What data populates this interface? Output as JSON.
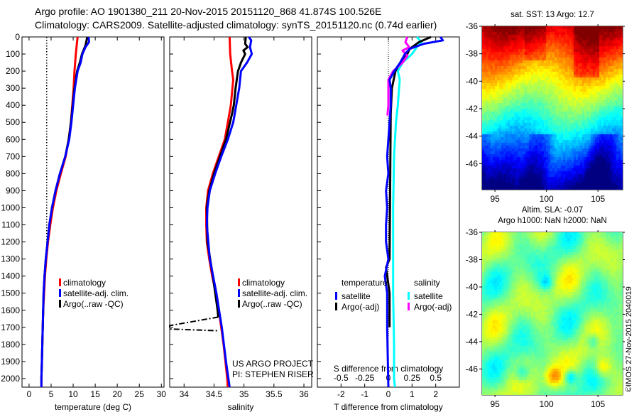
{
  "header": {
    "line1": "Argo profile: AO 1901380_211 20-Nov-2015 20151120_868 41.874S 100.526E",
    "line2": "Climatology: CARS2009. Satellite-adjusted climatology: synTS_20151120.nc (0.74d earlier)"
  },
  "depth_axis": {
    "ticks": [
      0,
      100,
      200,
      300,
      400,
      500,
      600,
      700,
      800,
      900,
      1000,
      1100,
      1200,
      1300,
      1400,
      1500,
      1600,
      1700,
      1800,
      1900,
      2000
    ],
    "ylim": [
      0,
      2050
    ]
  },
  "project": {
    "line1": "US ARGO PROJECT",
    "line2": "PI: STEPHEN RISER"
  },
  "credit": "©IMOS 27-Nov-2015 2040019",
  "chart_data": [
    {
      "id": "temperature",
      "type": "line",
      "xlabel": "temperature (deg C)",
      "xlim": [
        -1.6,
        30.6
      ],
      "ylim": [
        0,
        2050
      ],
      "xticks": [
        0,
        5,
        10,
        15,
        20,
        25,
        30
      ],
      "reference_line": {
        "x": 4,
        "depth": [
          0,
          1250
        ],
        "style": "dotted"
      },
      "legend": [
        {
          "label": "climatology",
          "color": "#ff0000"
        },
        {
          "label": "satellite-adj. clim.",
          "color": "#0000ff"
        },
        {
          "label": "Argo(..raw -QC)",
          "color": "#000000"
        }
      ],
      "series": [
        {
          "name": "climatology",
          "color": "#ff0000",
          "points": [
            [
              0,
              11
            ],
            [
              50,
              10.8
            ],
            [
              100,
              10.6
            ],
            [
              200,
              10.3
            ],
            [
              300,
              10.1
            ],
            [
              400,
              9.8
            ],
            [
              500,
              9.5
            ],
            [
              600,
              9
            ],
            [
              700,
              8.3
            ],
            [
              800,
              7.2
            ],
            [
              900,
              6.2
            ],
            [
              1000,
              5.4
            ],
            [
              1100,
              4.8
            ],
            [
              1200,
              4.3
            ],
            [
              1300,
              3.9
            ],
            [
              1400,
              3.6
            ],
            [
              1500,
              3.4
            ],
            [
              1600,
              3.2
            ],
            [
              1700,
              3.1
            ],
            [
              1800,
              3
            ],
            [
              1900,
              2.9
            ],
            [
              2000,
              2.8
            ],
            [
              2050,
              2.8
            ]
          ]
        },
        {
          "name": "Argo",
          "color": "#000000",
          "points": [
            [
              0,
              13.2
            ],
            [
              50,
              12.8
            ],
            [
              100,
              12
            ],
            [
              150,
              11.5
            ],
            [
              200,
              10.9
            ],
            [
              300,
              10.3
            ],
            [
              400,
              9.9
            ],
            [
              500,
              9.5
            ],
            [
              600,
              9
            ],
            [
              700,
              8.2
            ],
            [
              800,
              7
            ],
            [
              900,
              6
            ],
            [
              1000,
              5.2
            ],
            [
              1100,
              4.6
            ],
            [
              1200,
              4.2
            ],
            [
              1300,
              3.8
            ],
            [
              1400,
              3.5
            ],
            [
              1500,
              3.3
            ],
            [
              1700,
              3.1
            ],
            [
              1900,
              2.9
            ],
            [
              2000,
              2.8
            ]
          ]
        },
        {
          "name": "satellite-adj. clim.",
          "color": "#0000ff",
          "points": [
            [
              0,
              13.5
            ],
            [
              30,
              13.6
            ],
            [
              60,
              12.8
            ],
            [
              100,
              12.1
            ],
            [
              150,
              11.7
            ],
            [
              200,
              11
            ],
            [
              300,
              10.4
            ],
            [
              400,
              10
            ],
            [
              500,
              9.6
            ],
            [
              600,
              9.1
            ],
            [
              700,
              8.2
            ],
            [
              800,
              7
            ],
            [
              900,
              6
            ],
            [
              1000,
              5.2
            ],
            [
              1100,
              4.6
            ],
            [
              1200,
              4.2
            ],
            [
              1300,
              3.8
            ],
            [
              1400,
              3.5
            ],
            [
              1500,
              3.3
            ],
            [
              1600,
              3.2
            ],
            [
              1700,
              3.1
            ],
            [
              1800,
              3
            ],
            [
              1900,
              2.9
            ],
            [
              2000,
              2.8
            ],
            [
              2050,
              2.8
            ]
          ]
        }
      ]
    },
    {
      "id": "salinity",
      "type": "line",
      "xlabel": "salinity",
      "xlim": [
        33.76,
        36.13
      ],
      "ylim": [
        0,
        2050
      ],
      "xticks": [
        34,
        34.5,
        35,
        35.5,
        36
      ],
      "legend": [
        {
          "label": "climatology",
          "color": "#ff0000"
        },
        {
          "label": "satellite-adj. clim.",
          "color": "#0000ff"
        },
        {
          "label": "Argo(..raw -QC)",
          "color": "#000000"
        }
      ],
      "series": [
        {
          "name": "climatology",
          "color": "#ff0000",
          "points": [
            [
              0,
              34.76
            ],
            [
              100,
              34.77
            ],
            [
              200,
              34.8
            ],
            [
              250,
              34.82
            ],
            [
              400,
              34.78
            ],
            [
              500,
              34.73
            ],
            [
              600,
              34.68
            ],
            [
              700,
              34.58
            ],
            [
              800,
              34.48
            ],
            [
              900,
              34.4
            ],
            [
              1000,
              34.37
            ],
            [
              1100,
              34.37
            ],
            [
              1200,
              34.38
            ],
            [
              1300,
              34.42
            ],
            [
              1400,
              34.47
            ],
            [
              1500,
              34.53
            ],
            [
              1600,
              34.58
            ],
            [
              1700,
              34.62
            ],
            [
              1800,
              34.66
            ],
            [
              1900,
              34.69
            ],
            [
              2000,
              34.72
            ],
            [
              2050,
              34.73
            ]
          ]
        },
        {
          "name": "Argo",
          "color": "#000000",
          "points": [
            [
              0,
              35.03
            ],
            [
              40,
              35.02
            ],
            [
              60,
              35.06
            ],
            [
              80,
              34.99
            ],
            [
              100,
              35.02
            ],
            [
              150,
              34.95
            ],
            [
              200,
              34.9
            ],
            [
              300,
              34.86
            ],
            [
              400,
              34.83
            ],
            [
              450,
              34.8
            ],
            [
              600,
              34.7
            ],
            [
              700,
              34.6
            ],
            [
              800,
              34.5
            ],
            [
              900,
              34.42
            ],
            [
              1000,
              34.38
            ],
            [
              1200,
              34.39
            ],
            [
              1400,
              34.48
            ],
            [
              1600,
              34.56
            ],
            [
              1640,
              34.57
            ]
          ]
        },
        {
          "name": "Argo spike",
          "color": "#000000",
          "dash": true,
          "points": [
            [
              1640,
              34.57
            ],
            [
              1690,
              33.76
            ],
            [
              1710,
              33.76
            ],
            [
              1720,
              34.58
            ]
          ]
        },
        {
          "name": "satellite-adj. clim.",
          "color": "#0000ff",
          "points": [
            [
              0,
              35.08
            ],
            [
              20,
              35.12
            ],
            [
              60,
              35.1
            ],
            [
              100,
              35.13
            ],
            [
              150,
              35.05
            ],
            [
              200,
              34.95
            ],
            [
              300,
              34.92
            ],
            [
              400,
              34.87
            ],
            [
              500,
              34.82
            ],
            [
              600,
              34.73
            ],
            [
              700,
              34.62
            ],
            [
              800,
              34.52
            ],
            [
              900,
              34.43
            ],
            [
              1000,
              34.39
            ],
            [
              1100,
              34.38
            ],
            [
              1300,
              34.43
            ],
            [
              1500,
              34.54
            ],
            [
              1700,
              34.63
            ],
            [
              1900,
              34.7
            ],
            [
              2000,
              34.74
            ],
            [
              2050,
              34.76
            ]
          ]
        }
      ]
    },
    {
      "id": "difference",
      "type": "line",
      "xlabel": "T difference from climatology",
      "xlim": [
        -3,
        3
      ],
      "ylim": [
        0,
        2050
      ],
      "xticks": [
        -2,
        -1,
        0,
        1,
        2
      ],
      "x2label": "S difference from climatology",
      "x2ticks": [
        -0.5,
        -0.25,
        0,
        0.25,
        0.5
      ],
      "s_to_t_factor": 4,
      "legend_titles": {
        "temperature": "temperature",
        "salinity": "salinity"
      },
      "legend": [
        {
          "group": "temperature",
          "label": "satellite",
          "color": "#0000ff"
        },
        {
          "group": "temperature",
          "label": "Argo(-adj)",
          "color": "#000000"
        },
        {
          "group": "salinity",
          "label": "satellite",
          "color": "#00ffff"
        },
        {
          "group": "salinity",
          "label": "Argo(-adj)",
          "color": "#ff00ff"
        }
      ],
      "series": [
        {
          "name": "S satellite",
          "units": "S",
          "color": "#00ffff",
          "points": [
            [
              0,
              0.3
            ],
            [
              30,
              0.35
            ],
            [
              60,
              0.3
            ],
            [
              100,
              0.25
            ],
            [
              150,
              0.15
            ],
            [
              200,
              0.1
            ],
            [
              250,
              0.12
            ],
            [
              400,
              0.1
            ],
            [
              500,
              0.08
            ],
            [
              700,
              0.06
            ],
            [
              1000,
              0.05
            ],
            [
              1500,
              0.05
            ],
            [
              1800,
              0.06
            ],
            [
              2000,
              0.06
            ],
            [
              2050,
              0.07
            ]
          ]
        },
        {
          "name": "T Argo",
          "units": "T",
          "color": "#000000",
          "points": [
            [
              0,
              1.8
            ],
            [
              30,
              1.3
            ],
            [
              70,
              0.9
            ],
            [
              100,
              0.8
            ],
            [
              150,
              0.5
            ],
            [
              200,
              0.3
            ],
            [
              300,
              0.15
            ],
            [
              450,
              0.1
            ],
            [
              1300,
              0.05
            ],
            [
              1350,
              -0.1
            ],
            [
              1500,
              0.05
            ],
            [
              1700,
              0.05
            ]
          ]
        },
        {
          "name": "S Argo",
          "units": "S",
          "color": "#ff00ff",
          "points": [
            [
              0,
              0.2
            ],
            [
              30,
              0.18
            ],
            [
              60,
              0.22
            ],
            [
              80,
              0.15
            ],
            [
              110,
              0.2
            ],
            [
              150,
              0.15
            ],
            [
              200,
              0.05
            ],
            [
              250,
              0.0
            ],
            [
              400,
              0.0
            ],
            [
              460,
              -0.01
            ]
          ]
        },
        {
          "name": "T satellite",
          "units": "T",
          "color": "#0000ff",
          "points": [
            [
              0,
              2.2
            ],
            [
              20,
              2.3
            ],
            [
              40,
              1.5
            ],
            [
              70,
              0.9
            ],
            [
              100,
              0.7
            ],
            [
              150,
              0.5
            ],
            [
              200,
              0.25
            ],
            [
              250,
              0.05
            ],
            [
              300,
              0.1
            ],
            [
              400,
              0.1
            ],
            [
              500,
              0.05
            ],
            [
              600,
              0
            ],
            [
              700,
              -0.05
            ],
            [
              800,
              0
            ],
            [
              900,
              -0.1
            ],
            [
              1000,
              -0.05
            ],
            [
              1100,
              -0.1
            ],
            [
              1200,
              -0.1
            ],
            [
              1300,
              0
            ],
            [
              1400,
              -0.15
            ],
            [
              1500,
              -0.05
            ],
            [
              1700,
              -0.05
            ],
            [
              2050,
              0
            ]
          ]
        }
      ]
    },
    {
      "id": "sst-map",
      "type": "heatmap",
      "title": "sat. SST: 13 Argo: 12.7",
      "xticks": [
        95,
        100,
        105
      ],
      "yticks": [
        -36,
        -38,
        -40,
        -42,
        -44,
        -46
      ],
      "xlim": [
        93.75,
        107.4
      ],
      "ylim": [
        -47.9,
        -36
      ]
    },
    {
      "id": "sla-map",
      "type": "heatmap",
      "title": "Altim. SLA: -0.07",
      "subtitle": "Argo h1000: NaN h2000: NaN",
      "xticks": [
        95,
        100,
        105
      ],
      "yticks": [
        -36,
        -38,
        -40,
        -42,
        -44,
        -46
      ],
      "xlim": [
        93.75,
        107.4
      ],
      "ylim": [
        -47.9,
        -36
      ]
    }
  ]
}
